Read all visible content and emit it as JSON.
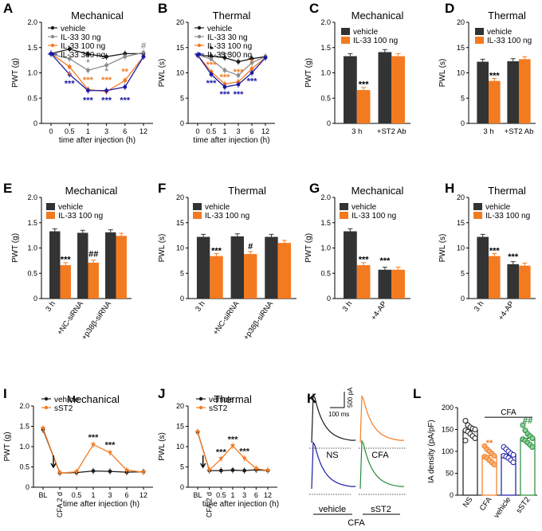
{
  "figure": {
    "font_color": "#000000"
  },
  "colors": {
    "black": "#1a1a1a",
    "gray": "#8c8c8c",
    "orange": "#f47a20",
    "blue": "#1b1ba6",
    "dark_bar": "#333333",
    "green": "#2a8a3a"
  },
  "chart_data": [
    {
      "panel": "A",
      "type": "line",
      "title": "Mechanical",
      "xlabel": "time after injection (h)",
      "ylabel": "PWT (g)",
      "categories": [
        "0",
        "0.5",
        "1",
        "3",
        "6",
        "12"
      ],
      "yticks": [
        "0",
        "0.5",
        "1.0",
        "1.5",
        "2.0"
      ],
      "ylim": [
        0,
        2.0
      ],
      "legend": [
        "vehicle",
        "IL-33 30 ng",
        "IL-33 100 ng",
        "IL-33 300 ng"
      ],
      "series": [
        {
          "name": "vehicle",
          "color": "black",
          "values": [
            1.38,
            1.47,
            1.37,
            1.32,
            1.38,
            1.38
          ]
        },
        {
          "name": "IL-33 30 ng",
          "color": "gray",
          "values": [
            1.37,
            1.28,
            1.05,
            1.15,
            1.32,
            1.4
          ]
        },
        {
          "name": "IL-33 100 ng",
          "color": "orange",
          "values": [
            1.38,
            1.12,
            0.67,
            0.63,
            0.85,
            1.32
          ]
        },
        {
          "name": "IL-33 300 ng",
          "color": "blue",
          "values": [
            1.38,
            0.97,
            0.65,
            0.65,
            0.72,
            1.32
          ]
        }
      ],
      "marks": [
        {
          "text": "*",
          "color": "gray",
          "xi": 2,
          "y": 1.15
        },
        {
          "text": "*",
          "color": "gray",
          "xi": 3,
          "y": 0.98
        },
        {
          "text": "*",
          "color": "orange",
          "xi": 1,
          "y": 0.9
        },
        {
          "text": "***",
          "color": "orange",
          "xi": 2,
          "y": 0.8
        },
        {
          "text": "***",
          "color": "orange",
          "xi": 3,
          "y": 0.8
        },
        {
          "text": "**",
          "color": "orange",
          "xi": 4,
          "y": 0.97
        },
        {
          "text": "***",
          "color": "blue",
          "xi": 1,
          "y": 0.73
        },
        {
          "text": "***",
          "color": "blue",
          "xi": 2,
          "y": 0.4
        },
        {
          "text": "***",
          "color": "blue",
          "xi": 3,
          "y": 0.4
        },
        {
          "text": "***",
          "color": "blue",
          "xi": 4,
          "y": 0.4
        },
        {
          "text": "#",
          "color": "gray",
          "xi": 5,
          "y": 1.48
        }
      ]
    },
    {
      "panel": "B",
      "type": "line",
      "title": "Thermal",
      "xlabel": "time after injection (h)",
      "ylabel": "PWL (s)",
      "categories": [
        "0",
        "0.5",
        "1",
        "3",
        "6",
        "12"
      ],
      "yticks": [
        "0",
        "5",
        "10",
        "15",
        "20"
      ],
      "ylim": [
        0,
        20
      ],
      "legend": [
        "vehicle",
        "IL-33 30 ng",
        "IL-33 100 ng",
        "IL-33 300 ng"
      ],
      "series": [
        {
          "name": "vehicle",
          "color": "black",
          "values": [
            13.5,
            13.3,
            13.0,
            12.2,
            12.8,
            13.2
          ]
        },
        {
          "name": "IL-33 30 ng",
          "color": "gray",
          "values": [
            13.6,
            12.7,
            10.5,
            9.5,
            12.0,
            13.2
          ]
        },
        {
          "name": "IL-33 100 ng",
          "color": "orange",
          "values": [
            13.5,
            10.2,
            7.8,
            8.2,
            10.8,
            13.0
          ]
        },
        {
          "name": "IL-33 300 ng",
          "color": "blue",
          "values": [
            13.5,
            9.7,
            7.2,
            7.7,
            10.0,
            13.0
          ]
        }
      ],
      "marks": [
        {
          "text": "*",
          "color": "black",
          "xi": 1,
          "y": 14.1
        },
        {
          "text": "***",
          "color": "gray",
          "xi": 2,
          "y": 12.9
        },
        {
          "text": "***",
          "color": "orange",
          "xi": 1,
          "y": 11.0
        },
        {
          "text": "***",
          "color": "orange",
          "xi": 2,
          "y": 8.6
        },
        {
          "text": "***",
          "color": "orange",
          "xi": 3,
          "y": 9.6
        },
        {
          "text": "*",
          "color": "orange",
          "xi": 4,
          "y": 11.6
        },
        {
          "text": "***",
          "color": "blue",
          "xi": 1,
          "y": 7.4
        },
        {
          "text": "***",
          "color": "blue",
          "xi": 2,
          "y": 5.2
        },
        {
          "text": "***",
          "color": "blue",
          "xi": 3,
          "y": 5.2
        },
        {
          "text": "***",
          "color": "blue",
          "xi": 4,
          "y": 7.8
        }
      ]
    },
    {
      "panel": "C",
      "type": "bar",
      "title": "Mechanical",
      "ylabel": "PWT (g)",
      "yticks": [
        "0",
        "0.5",
        "1.0",
        "1.5",
        "2.0"
      ],
      "ylim": [
        0,
        2.0
      ],
      "legend": [
        "vehicle",
        "IL-33 100 ng"
      ],
      "categories": [
        "3 h",
        "+ST2 Ab"
      ],
      "rotated": false,
      "series": [
        {
          "name": "vehicle",
          "values": [
            1.33,
            1.41
          ]
        },
        {
          "name": "IL-33 100 ng",
          "values": [
            0.66,
            1.33
          ]
        }
      ],
      "marks": [
        {
          "text": "***",
          "gi": 0,
          "si": 1,
          "y": 0.72
        }
      ]
    },
    {
      "panel": "D",
      "type": "bar",
      "title": "Thermal",
      "ylabel": "PWL (s)",
      "yticks": [
        "0",
        "5",
        "10",
        "15",
        "20"
      ],
      "ylim": [
        0,
        20
      ],
      "legend": [
        "vehicle",
        "IL-33 100 ng"
      ],
      "categories": [
        "3 h",
        "+ST2 Ab"
      ],
      "rotated": false,
      "series": [
        {
          "name": "vehicle",
          "values": [
            12.2,
            12.3
          ]
        },
        {
          "name": "IL-33 100 ng",
          "values": [
            8.4,
            12.7
          ]
        }
      ],
      "marks": [
        {
          "text": "***",
          "gi": 0,
          "si": 1,
          "y": 8.9
        }
      ]
    },
    {
      "panel": "E",
      "type": "bar",
      "title": "Mechanical",
      "ylabel": "PWT (g)",
      "yticks": [
        "0",
        "0.5",
        "1.0",
        "1.5",
        "2.0"
      ],
      "ylim": [
        0,
        2.0
      ],
      "legend": [
        "vehicle",
        "IL-33 100 ng"
      ],
      "categories": [
        "3 h",
        "+NC-siRNA",
        "+p38β-siRNA"
      ],
      "rotated": true,
      "series": [
        {
          "name": "vehicle",
          "values": [
            1.33,
            1.3,
            1.31
          ]
        },
        {
          "name": "IL-33 100 ng",
          "values": [
            0.66,
            0.71,
            1.24
          ]
        }
      ],
      "marks": [
        {
          "text": "***",
          "gi": 0,
          "si": 1,
          "y": 0.72
        },
        {
          "text": "##",
          "gi": 1,
          "si": 1,
          "y": 0.83
        }
      ]
    },
    {
      "panel": "F",
      "type": "bar",
      "title": "Thermal",
      "ylabel": "PWL (s)",
      "yticks": [
        "0",
        "5",
        "10",
        "15",
        "20"
      ],
      "ylim": [
        0,
        20
      ],
      "legend": [
        "vehicle",
        "IL-33 100 ng"
      ],
      "categories": [
        "3 h",
        "+NC-siRNA",
        "+p38β-siRNA"
      ],
      "rotated": true,
      "series": [
        {
          "name": "vehicle",
          "values": [
            12.2,
            12.3,
            12.2
          ]
        },
        {
          "name": "IL-33 100 ng",
          "values": [
            8.4,
            8.8,
            11.0
          ]
        }
      ],
      "marks": [
        {
          "text": "***",
          "gi": 0,
          "si": 1,
          "y": 8.9
        },
        {
          "text": "#",
          "gi": 1,
          "si": 1,
          "y": 9.8
        }
      ]
    },
    {
      "panel": "G",
      "type": "bar",
      "title": "Mechanical",
      "ylabel": "PWT (g)",
      "yticks": [
        "0",
        "0.5",
        "1.0",
        "1.5",
        "2.0"
      ],
      "ylim": [
        0,
        2.0
      ],
      "legend": [
        "vehicle",
        "IL-33 100 ng"
      ],
      "categories": [
        "3 h",
        "+4-AP"
      ],
      "rotated": true,
      "series": [
        {
          "name": "vehicle",
          "values": [
            1.33,
            0.57
          ]
        },
        {
          "name": "IL-33 100 ng",
          "values": [
            0.66,
            0.57
          ]
        }
      ],
      "marks": [
        {
          "text": "***",
          "gi": 0,
          "si": 1,
          "y": 0.72
        },
        {
          "text": "***",
          "gi": 1,
          "si": 0,
          "y": 0.69
        }
      ]
    },
    {
      "panel": "H",
      "type": "bar",
      "title": "Thermal",
      "ylabel": "PWL (s)",
      "yticks": [
        "0",
        "5",
        "10",
        "15",
        "20"
      ],
      "ylim": [
        0,
        20
      ],
      "legend": [
        "vehicle",
        "IL-33 100 ng"
      ],
      "categories": [
        "3 h",
        "+4-AP"
      ],
      "rotated": true,
      "series": [
        {
          "name": "vehicle",
          "values": [
            12.2,
            6.8
          ]
        },
        {
          "name": "IL-33 100 ng",
          "values": [
            8.4,
            6.5
          ]
        }
      ],
      "marks": [
        {
          "text": "***",
          "gi": 0,
          "si": 1,
          "y": 8.9
        },
        {
          "text": "***",
          "gi": 1,
          "si": 0,
          "y": 7.7
        }
      ]
    },
    {
      "panel": "I",
      "type": "line",
      "title": "Mechanical",
      "xlabel": "time after injection (h)",
      "ylabel": "PWT (g)",
      "categories": [
        "BL",
        "CFA 2 d",
        "0.5",
        "1",
        "3",
        "6",
        "12"
      ],
      "yticks": [
        "0",
        "0.5",
        "1.0",
        "1.5",
        "2.0"
      ],
      "ylim": [
        0,
        2.0
      ],
      "legend": [
        "vehicle",
        "sST2"
      ],
      "arrow_index": 1,
      "series": [
        {
          "name": "vehicle",
          "color": "black",
          "values": [
            1.42,
            0.35,
            0.36,
            0.4,
            0.39,
            0.37,
            0.38
          ]
        },
        {
          "name": "sST2",
          "color": "orange",
          "values": [
            1.45,
            0.35,
            0.38,
            1.05,
            0.85,
            0.42,
            0.37
          ]
        }
      ],
      "marks": [
        {
          "text": "***",
          "color": "black",
          "xi": 3,
          "y": 1.16
        },
        {
          "text": "***",
          "color": "black",
          "xi": 4,
          "y": 0.97
        }
      ]
    },
    {
      "panel": "J",
      "type": "line",
      "title": "Thermal",
      "xlabel": "time after injection (h)",
      "ylabel": "PWL (s)",
      "categories": [
        "BL",
        "CFA 2 d",
        "0.5",
        "1",
        "3",
        "6",
        "12"
      ],
      "yticks": [
        "0",
        "5",
        "10",
        "15",
        "20"
      ],
      "ylim": [
        0,
        20
      ],
      "legend": [
        "vehicle",
        "sST2"
      ],
      "arrow_index": 1,
      "series": [
        {
          "name": "vehicle",
          "color": "black",
          "values": [
            13.6,
            4.1,
            4.1,
            4.2,
            4.1,
            4.3,
            4.1
          ]
        },
        {
          "name": "sST2",
          "color": "orange",
          "values": [
            13.6,
            4.2,
            7.0,
            10.2,
            7.1,
            4.6,
            4.1
          ]
        }
      ],
      "marks": [
        {
          "text": "***",
          "color": "black",
          "xi": 2,
          "y": 7.9
        },
        {
          "text": "***",
          "color": "black",
          "xi": 3,
          "y": 11.1
        },
        {
          "text": "***",
          "color": "black",
          "xi": 4,
          "y": 8.1
        }
      ]
    },
    {
      "panel": "L",
      "type": "bar",
      "title": "",
      "ylabel": "IA density (pA/pF)",
      "yticks": [
        "0",
        "50",
        "100",
        "150",
        "200"
      ],
      "ylim": [
        0,
        200
      ],
      "categories": [
        "NS",
        "CFA",
        "vehicle",
        "sST2"
      ],
      "colors": [
        "black",
        "orange",
        "blue",
        "green"
      ],
      "values": [
        148,
        90,
        93,
        130
      ],
      "points": [
        [
          170,
          160,
          155,
          152,
          150,
          148,
          145,
          140,
          135,
          130,
          125
        ],
        [
          112,
          105,
          100,
          95,
          90,
          88,
          85,
          80,
          75,
          70
        ],
        [
          110,
          105,
          100,
          95,
          92,
          90,
          88,
          85,
          80,
          75
        ],
        [
          160,
          148,
          140,
          135,
          130,
          128,
          125,
          120,
          115,
          110
        ]
      ],
      "marks": [
        {
          "text": "**",
          "ci": 1,
          "y": 113
        },
        {
          "text": "##",
          "ci": 3,
          "y": 164
        }
      ],
      "group_label": "CFA"
    }
  ],
  "panel_K": {
    "label": "K",
    "scale_y": "500 pA",
    "scale_x": "100 ms",
    "traces": [
      {
        "name": "NS",
        "color": "black"
      },
      {
        "name": "CFA",
        "color": "orange"
      },
      {
        "name": "vehicle",
        "color": "blue"
      },
      {
        "name": "sST2",
        "color": "green"
      }
    ],
    "group_label": "CFA"
  }
}
